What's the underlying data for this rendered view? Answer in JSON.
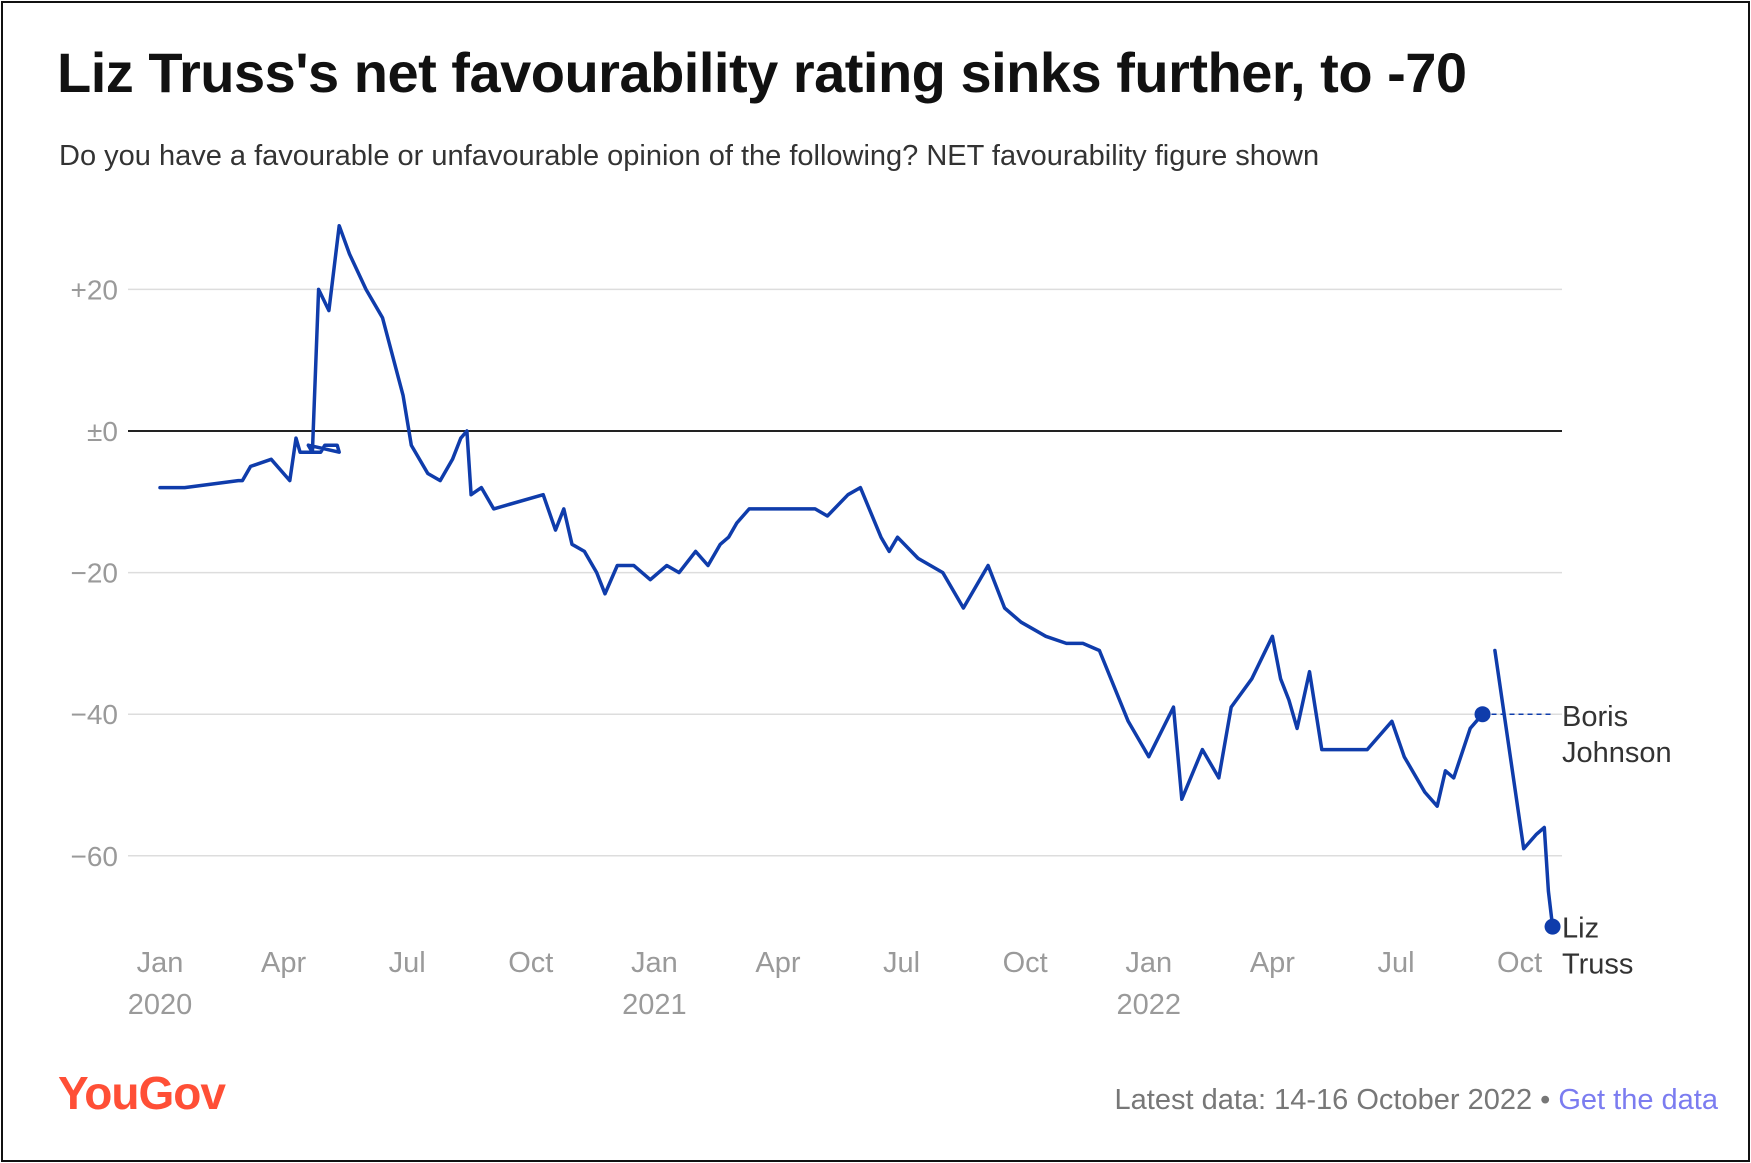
{
  "title": "Liz Truss's net favourability rating sinks further, to -70",
  "subtitle": "Do you have a favourable or unfavourable opinion of the following? NET favourability figure shown",
  "logo": "YouGov",
  "footer": {
    "latest": "Latest data: 14-16 October 2022",
    "separator": "•",
    "link": "Get the data"
  },
  "chart_data": {
    "type": "line",
    "title": "Liz Truss's net favourability rating sinks further, to -70",
    "xlabel": "",
    "ylabel": "",
    "ylim": [
      -70,
      30
    ],
    "yticks": [
      20,
      0,
      -20,
      -40,
      -60
    ],
    "ytick_labels": [
      "+20",
      "±0",
      "−20",
      "−40",
      "−60"
    ],
    "xticks": [
      {
        "m": 0,
        "label": "Jan",
        "year": "2020"
      },
      {
        "m": 3,
        "label": "Apr",
        "year": ""
      },
      {
        "m": 6,
        "label": "Jul",
        "year": ""
      },
      {
        "m": 9,
        "label": "Oct",
        "year": ""
      },
      {
        "m": 12,
        "label": "Jan",
        "year": "2021"
      },
      {
        "m": 15,
        "label": "Apr",
        "year": ""
      },
      {
        "m": 18,
        "label": "Jul",
        "year": ""
      },
      {
        "m": 21,
        "label": "Oct",
        "year": ""
      },
      {
        "m": 24,
        "label": "Jan",
        "year": "2022"
      },
      {
        "m": 27,
        "label": "Apr",
        "year": ""
      },
      {
        "m": 30,
        "label": "Jul",
        "year": ""
      },
      {
        "m": 33,
        "label": "Oct",
        "year": ""
      }
    ],
    "x_unit": "months since Jan 2020",
    "color": "#0f3cab",
    "series": [
      {
        "name": "Boris Johnson",
        "label_lines": [
          "Boris",
          "Johnson"
        ],
        "points": [
          [
            0,
            -8
          ],
          [
            0.6,
            -8
          ],
          [
            1.9,
            -7
          ],
          [
            2.0,
            -7
          ],
          [
            2.2,
            -5
          ],
          [
            2.7,
            -4
          ],
          [
            3.15,
            -7
          ],
          [
            3.3,
            -1
          ],
          [
            3.4,
            -3
          ],
          [
            3.6,
            -3
          ],
          [
            3.9,
            -3
          ],
          [
            4.0,
            -2
          ],
          [
            4.3,
            -2
          ],
          [
            4.35,
            -3
          ],
          [
            3.6,
            -2
          ],
          [
            3.7,
            -3
          ],
          [
            3.85,
            20
          ],
          [
            4.1,
            17
          ],
          [
            4.35,
            29
          ],
          [
            4.6,
            25
          ],
          [
            5.0,
            20
          ],
          [
            5.4,
            16
          ],
          [
            5.9,
            5
          ],
          [
            6.1,
            -2
          ],
          [
            6.5,
            -6
          ],
          [
            6.8,
            -7
          ],
          [
            7.1,
            -4
          ],
          [
            7.3,
            -1
          ],
          [
            7.45,
            0
          ],
          [
            7.55,
            -9
          ],
          [
            7.8,
            -8
          ],
          [
            8.1,
            -11
          ],
          [
            8.4,
            -10.5
          ],
          [
            9.3,
            -9
          ],
          [
            9.6,
            -14
          ],
          [
            9.8,
            -11
          ],
          [
            10.0,
            -16
          ],
          [
            10.3,
            -17
          ],
          [
            10.6,
            -20
          ],
          [
            10.8,
            -23
          ],
          [
            11.1,
            -19
          ],
          [
            11.5,
            -19
          ],
          [
            11.9,
            -21
          ],
          [
            12.3,
            -19
          ],
          [
            12.6,
            -20
          ],
          [
            13.0,
            -17
          ],
          [
            13.3,
            -19
          ],
          [
            13.6,
            -16
          ],
          [
            13.8,
            -15
          ],
          [
            14.0,
            -13
          ],
          [
            14.3,
            -11
          ],
          [
            15.3,
            -11
          ],
          [
            15.9,
            -11
          ],
          [
            16.2,
            -12
          ],
          [
            16.7,
            -9
          ],
          [
            17.0,
            -8
          ],
          [
            17.5,
            -15
          ],
          [
            17.7,
            -17
          ],
          [
            17.9,
            -15
          ],
          [
            18.4,
            -18
          ],
          [
            19.0,
            -20
          ],
          [
            19.5,
            -25
          ],
          [
            20.1,
            -19
          ],
          [
            20.5,
            -25
          ],
          [
            20.9,
            -27
          ],
          [
            21.5,
            -29
          ],
          [
            22.0,
            -30
          ],
          [
            22.4,
            -30
          ],
          [
            22.8,
            -31
          ],
          [
            23.5,
            -41
          ],
          [
            24.0,
            -46
          ],
          [
            24.6,
            -39
          ],
          [
            24.8,
            -52
          ],
          [
            25.3,
            -45
          ],
          [
            25.7,
            -49
          ],
          [
            26.0,
            -39
          ],
          [
            26.5,
            -35
          ],
          [
            27.0,
            -29
          ],
          [
            27.2,
            -35
          ],
          [
            27.4,
            -38
          ],
          [
            27.6,
            -42
          ],
          [
            27.9,
            -34
          ],
          [
            28.2,
            -45
          ],
          [
            28.8,
            -45
          ],
          [
            29.3,
            -45
          ],
          [
            29.9,
            -41
          ],
          [
            30.2,
            -46
          ],
          [
            30.7,
            -51
          ],
          [
            31.0,
            -53
          ],
          [
            31.2,
            -48
          ],
          [
            31.4,
            -49
          ],
          [
            31.8,
            -42
          ],
          [
            32.1,
            -40
          ]
        ],
        "end_value": -40
      },
      {
        "name": "Liz Truss",
        "label_lines": [
          "Liz",
          "Truss"
        ],
        "points": [
          [
            32.4,
            -31
          ],
          [
            33.1,
            -59
          ],
          [
            33.4,
            -57
          ],
          [
            33.6,
            -56
          ],
          [
            33.7,
            -65
          ],
          [
            33.8,
            -70
          ]
        ],
        "end_value": -70
      }
    ],
    "legend": "direct labels at line ends, right side"
  }
}
